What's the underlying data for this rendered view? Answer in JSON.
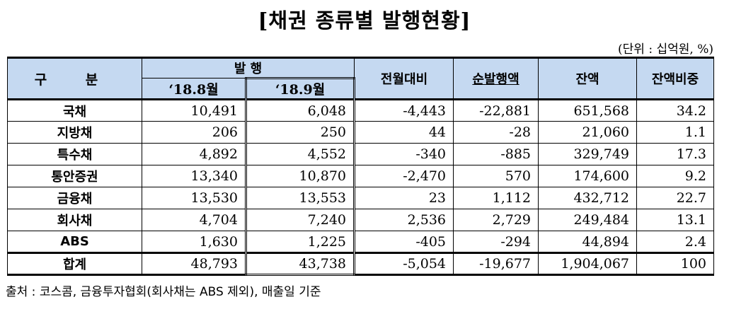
{
  "title": "[채권 종류별 발행현황]",
  "unit": "(단위 : 십억원, %)",
  "header": {
    "gubun": "구 분",
    "issuance": "발 행",
    "aug": "‘18.8월",
    "sep": "‘18.9월",
    "mom": "전월대비",
    "net": "순발행액",
    "balance": "잔액",
    "share": "잔액비중"
  },
  "rows": [
    {
      "label": "국채",
      "aug": "10,491",
      "sep": "6,048",
      "mom": "-4,443",
      "net": "-22,881",
      "balance": "651,568",
      "share": "34.2"
    },
    {
      "label": "지방채",
      "aug": "206",
      "sep": "250",
      "mom": "44",
      "net": "-28",
      "balance": "21,060",
      "share": "1.1"
    },
    {
      "label": "특수채",
      "aug": "4,892",
      "sep": "4,552",
      "mom": "-340",
      "net": "-885",
      "balance": "329,749",
      "share": "17.3"
    },
    {
      "label": "통안증권",
      "aug": "13,340",
      "sep": "10,870",
      "mom": "-2,470",
      "net": "570",
      "balance": "174,600",
      "share": "9.2"
    },
    {
      "label": "금융채",
      "aug": "13,530",
      "sep": "13,553",
      "mom": "23",
      "net": "1,112",
      "balance": "432,712",
      "share": "22.7"
    },
    {
      "label": "회사채",
      "aug": "4,704",
      "sep": "7,240",
      "mom": "2,536",
      "net": "2,729",
      "balance": "249,484",
      "share": "13.1"
    },
    {
      "label": "ABS",
      "aug": "1,630",
      "sep": "1,225",
      "mom": "-405",
      "net": "-294",
      "balance": "44,894",
      "share": "2.4"
    },
    {
      "label": "합계",
      "aug": "48,793",
      "sep": "43,738",
      "mom": "-5,054",
      "net": "-19,677",
      "balance": "1,904,067",
      "share": "100"
    }
  ],
  "source": "출처 : 코스콤, 금융투자협회(회사채는 ABS 제외), 매출일 기준"
}
